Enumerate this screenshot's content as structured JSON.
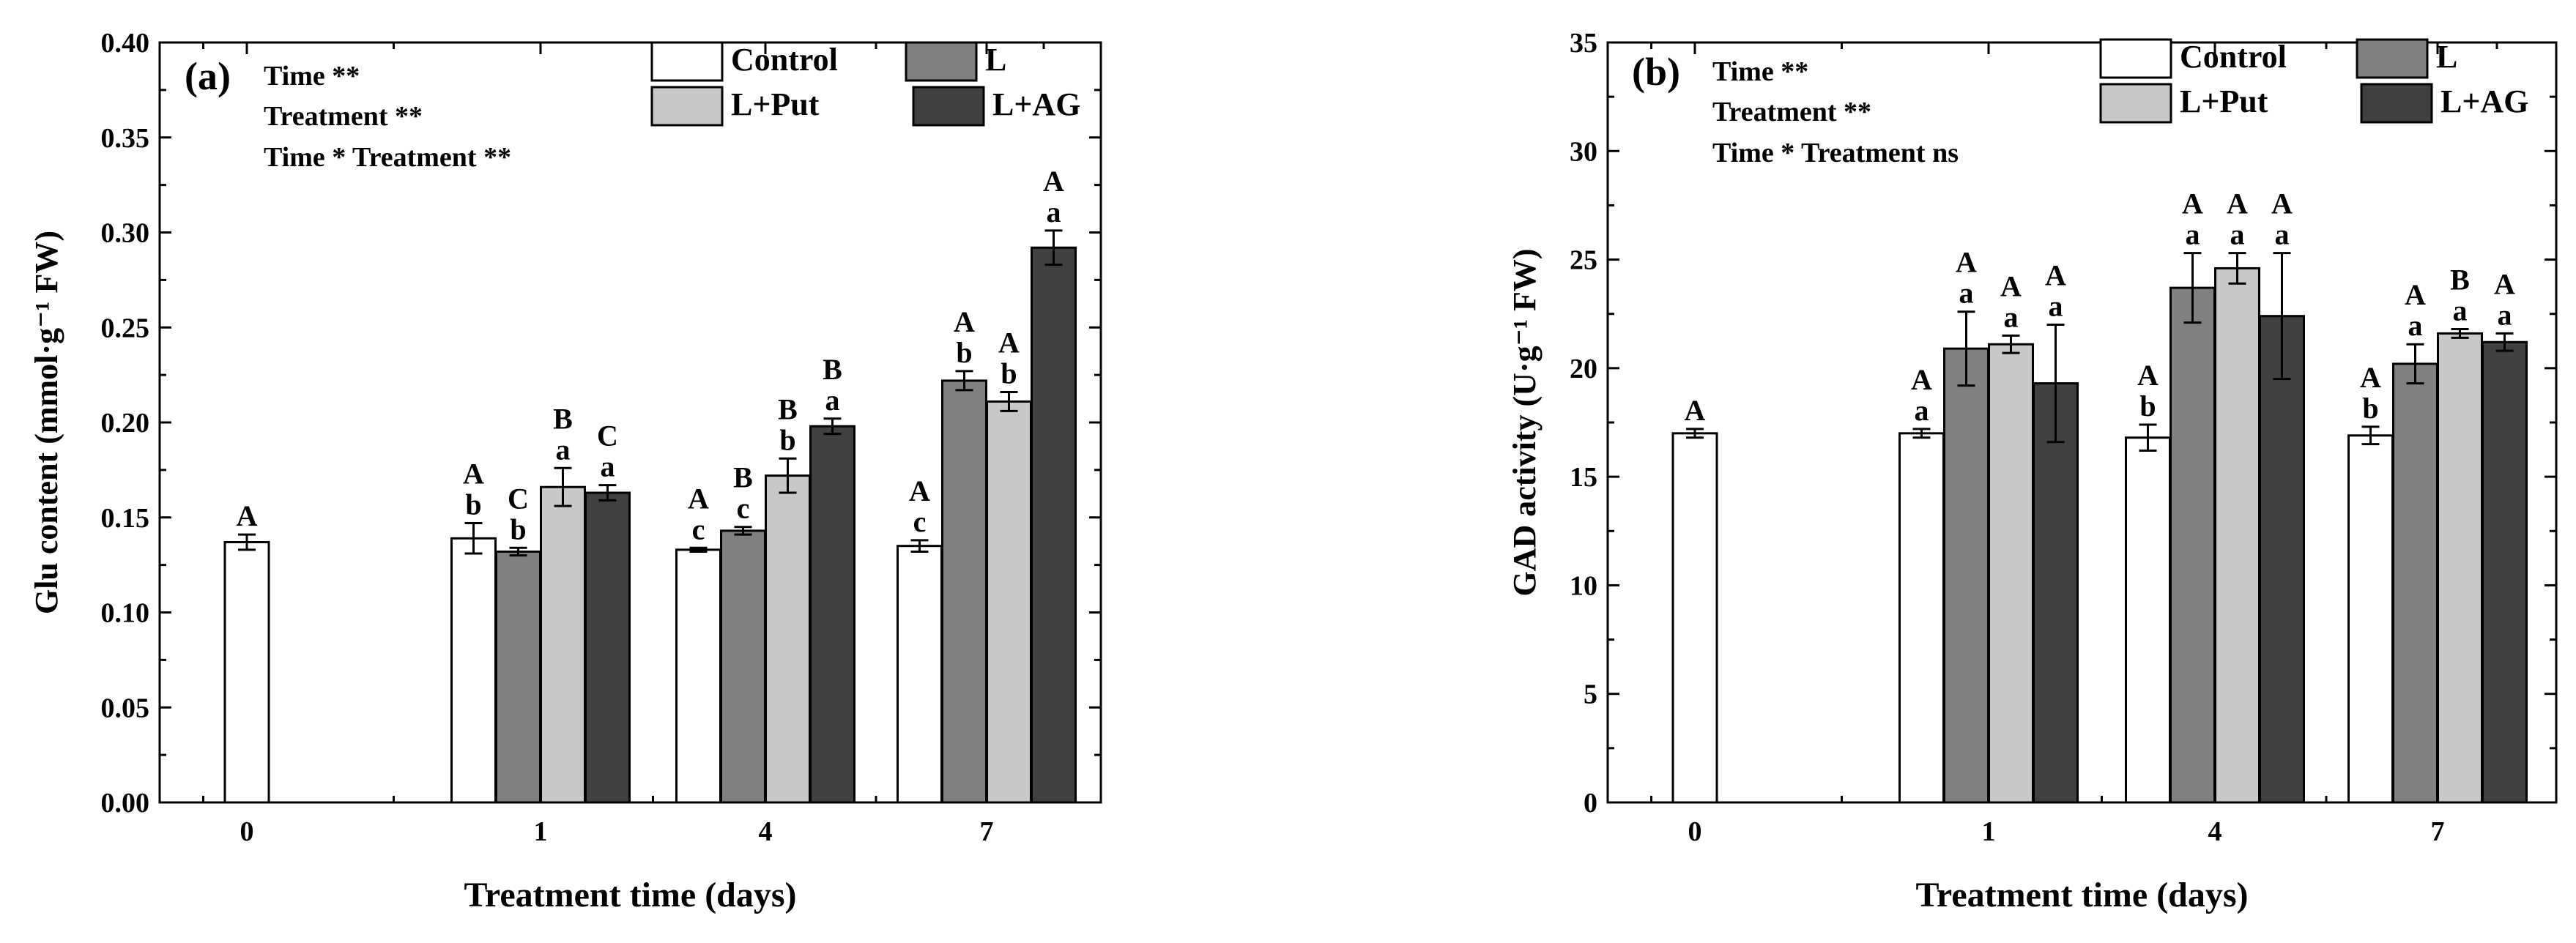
{
  "chart_data": [
    {
      "type": "bar",
      "panel_label": "(a)",
      "stats": [
        "Time **",
        "Treatment  **",
        "Time * Treatment **"
      ],
      "xlabel": "Treatment time (days)",
      "ylabel": "Glu content (mmol·g⁻¹ FW)",
      "ylim": [
        0,
        0.4
      ],
      "yticks": [
        "0.00",
        "0.05",
        "0.10",
        "0.15",
        "0.20",
        "0.25",
        "0.30",
        "0.35",
        "0.40"
      ],
      "categories": [
        "0",
        "1",
        "4",
        "7"
      ],
      "series": [
        {
          "name": "Control",
          "color": "#ffffff",
          "values": [
            0.137,
            0.139,
            0.133,
            0.135
          ],
          "errors": [
            0.004,
            0.008,
            0.001,
            0.003
          ],
          "upper": [
            "A",
            "A",
            "A",
            "A"
          ],
          "lower": [
            "",
            "b",
            "c",
            "c"
          ]
        },
        {
          "name": "L",
          "color": "#808080",
          "values": [
            null,
            0.132,
            0.143,
            0.222
          ],
          "errors": [
            null,
            0.002,
            0.002,
            0.005
          ],
          "upper": [
            "",
            "C",
            "B",
            "A"
          ],
          "lower": [
            "",
            "b",
            "c",
            "b"
          ]
        },
        {
          "name": "L+Put",
          "color": "#c8c8c8",
          "values": [
            null,
            0.166,
            0.172,
            0.211
          ],
          "errors": [
            null,
            0.01,
            0.009,
            0.005
          ],
          "upper": [
            "",
            "B",
            "B",
            "A"
          ],
          "lower": [
            "",
            "a",
            "b",
            "b"
          ]
        },
        {
          "name": "L+AG",
          "color": "#404040",
          "values": [
            null,
            0.163,
            0.198,
            0.292
          ],
          "errors": [
            null,
            0.004,
            0.004,
            0.009
          ],
          "upper": [
            "",
            "C",
            "B",
            "A"
          ],
          "lower": [
            "",
            "a",
            "a",
            "a"
          ]
        }
      ]
    },
    {
      "type": "bar",
      "panel_label": "(b)",
      "stats": [
        "Time **",
        "Treatment  **",
        "Time * Treatment ns"
      ],
      "xlabel": "Treatment time (days)",
      "ylabel": "GAD activity (U·g⁻¹ FW)",
      "ylim": [
        0,
        35
      ],
      "yticks": [
        "0",
        "5",
        "10",
        "15",
        "20",
        "25",
        "30",
        "35"
      ],
      "categories": [
        "0",
        "1",
        "4",
        "7"
      ],
      "series": [
        {
          "name": "Control",
          "color": "#ffffff",
          "values": [
            17.0,
            17.0,
            16.8,
            16.9
          ],
          "errors": [
            0.2,
            0.2,
            0.6,
            0.4
          ],
          "upper": [
            "A",
            "A",
            "A",
            "A"
          ],
          "lower": [
            "",
            "a",
            "b",
            "b"
          ]
        },
        {
          "name": "L",
          "color": "#808080",
          "values": [
            null,
            20.9,
            23.7,
            20.2
          ],
          "errors": [
            null,
            1.7,
            1.6,
            0.9
          ],
          "upper": [
            "",
            "A",
            "A",
            "A"
          ],
          "lower": [
            "",
            "a",
            "a",
            "a"
          ]
        },
        {
          "name": "L+Put",
          "color": "#c8c8c8",
          "values": [
            null,
            21.1,
            24.6,
            21.6
          ],
          "errors": [
            null,
            0.4,
            0.7,
            0.2
          ],
          "upper": [
            "",
            "A",
            "A",
            "B"
          ],
          "lower": [
            "",
            "a",
            "a",
            "a"
          ]
        },
        {
          "name": "L+AG",
          "color": "#404040",
          "values": [
            null,
            19.3,
            22.4,
            21.2
          ],
          "errors": [
            null,
            2.7,
            2.9,
            0.4
          ],
          "upper": [
            "",
            "A",
            "A",
            "A"
          ],
          "lower": [
            "",
            "a",
            "a",
            "a"
          ]
        }
      ]
    }
  ]
}
